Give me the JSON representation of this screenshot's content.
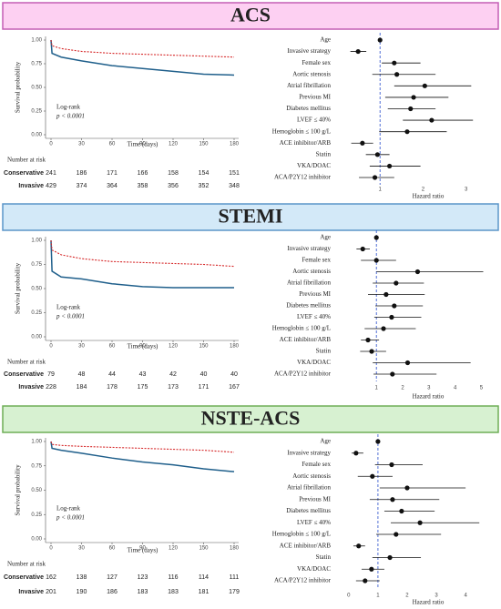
{
  "chart_data": [
    {
      "type": "km",
      "title": "ACS",
      "xlabel": "Time (days)",
      "ylabel": "Survival probability",
      "annotation": [
        "Log-rank",
        "p < 0.0001"
      ],
      "risk_table_title": "Number at risk",
      "x": [
        0,
        1,
        10,
        30,
        60,
        90,
        120,
        150,
        180
      ],
      "xlim": [
        0,
        180
      ],
      "xticks": [
        0,
        30,
        60,
        90,
        120,
        150,
        180
      ],
      "ylim": [
        0,
        1
      ],
      "yticks": [
        {
          "value": 0,
          "label": "0.00"
        },
        {
          "value": 0.25,
          "label": "0.25"
        },
        {
          "value": 0.5,
          "label": "0.50"
        },
        {
          "value": 0.75,
          "label": "0.75"
        },
        {
          "value": 1,
          "label": "1.00"
        }
      ],
      "series": [
        {
          "name": "Conservative",
          "color": "#1f5f8b",
          "dashed": false,
          "values": [
            1,
            0.86,
            0.82,
            0.78,
            0.73,
            0.7,
            0.67,
            0.64,
            0.63
          ],
          "at_risk": [
            241,
            186,
            171,
            166,
            158,
            154,
            151
          ]
        },
        {
          "name": "Invasive",
          "color": "#d62728",
          "dashed": true,
          "values": [
            1,
            0.94,
            0.91,
            0.88,
            0.86,
            0.85,
            0.84,
            0.83,
            0.82
          ],
          "at_risk": [
            429,
            374,
            364,
            358,
            356,
            352,
            348
          ]
        }
      ]
    },
    {
      "type": "forest",
      "xlabel": "Hazard ratio",
      "xlim": [
        0,
        3.6
      ],
      "xticks": [
        1,
        2,
        3
      ],
      "reference_line": 1,
      "color": "#111",
      "categories": [
        "Age",
        "Invasive strategy",
        "Female sex",
        "Aortic stenosis",
        "Atrial fibrillation",
        "Previous MI",
        "Diabetes mellitus",
        "LVEF ≤ 40%",
        "Hemoglobin ≤ 100 g/L",
        "ACE inhibitor/ARB",
        "Statin",
        "VKA/DOAC",
        "ACA/P2Y12 inhibitor"
      ],
      "values": [
        1.0,
        0.49,
        1.33,
        1.39,
        2.04,
        1.78,
        1.71,
        2.2,
        1.63,
        0.59,
        0.94,
        1.22,
        0.88
      ],
      "ci_low": [
        0.99,
        0.31,
        1.04,
        0.82,
        1.33,
        1.12,
        1.18,
        1.53,
        0.98,
        0.33,
        0.67,
        0.76,
        0.51
      ],
      "ci_high": [
        1.01,
        0.68,
        1.94,
        2.29,
        3.12,
        2.59,
        2.29,
        3.16,
        2.55,
        0.84,
        1.22,
        1.94,
        1.33
      ]
    },
    {
      "type": "km",
      "title": "STEMI",
      "xlabel": "Time (days)",
      "ylabel": "Survival probability",
      "annotation": [
        "Log-rank",
        "p < 0.0001"
      ],
      "risk_table_title": "Number at risk",
      "x": [
        0,
        1,
        10,
        30,
        60,
        90,
        120,
        150,
        180
      ],
      "xlim": [
        0,
        180
      ],
      "xticks": [
        0,
        30,
        60,
        90,
        120,
        150,
        180
      ],
      "ylim": [
        0,
        1
      ],
      "yticks": [
        {
          "value": 0,
          "label": "0.00"
        },
        {
          "value": 0.25,
          "label": "0.25"
        },
        {
          "value": 0.5,
          "label": "0.50"
        },
        {
          "value": 0.75,
          "label": "0.75"
        },
        {
          "value": 1,
          "label": "1.00"
        }
      ],
      "series": [
        {
          "name": "Conservative",
          "color": "#1f5f8b",
          "dashed": false,
          "values": [
            1,
            0.68,
            0.62,
            0.6,
            0.55,
            0.52,
            0.51,
            0.51,
            0.51
          ],
          "at_risk": [
            79,
            48,
            44,
            43,
            42,
            40,
            40
          ]
        },
        {
          "name": "Invasive",
          "color": "#d62728",
          "dashed": true,
          "values": [
            1,
            0.9,
            0.85,
            0.81,
            0.78,
            0.77,
            0.76,
            0.75,
            0.73
          ],
          "at_risk": [
            228,
            184,
            178,
            175,
            173,
            171,
            167
          ]
        }
      ]
    },
    {
      "type": "forest",
      "xlabel": "Hazard ratio",
      "xlim": [
        -0.5,
        5.4
      ],
      "xticks": [
        1,
        2,
        3,
        4,
        5
      ],
      "reference_line": 1,
      "color": "#111",
      "categories": [
        "Age",
        "Invasive strategy",
        "Female sex",
        "Aortic stenosis",
        "Atrial fibrillation",
        "Previous MI",
        "Diabetes mellitus",
        "LVEF ≤ 40%",
        "Hemoglobin ≤ 100 g/L",
        "ACE inhibitor/ARB",
        "Statin",
        "VKA/DOAC",
        "ACA/P2Y12 inhibitor"
      ],
      "values": [
        1.0,
        0.48,
        1.0,
        2.57,
        1.75,
        1.37,
        1.68,
        1.58,
        1.27,
        0.68,
        0.82,
        2.19,
        1.61
      ],
      "ci_low": [
        0.99,
        0.24,
        0.41,
        1.0,
        0.86,
        0.68,
        0.96,
        0.92,
        0.55,
        0.41,
        0.38,
        0.86,
        0.89
      ],
      "ci_high": [
        1.01,
        0.75,
        1.75,
        5.07,
        2.81,
        2.84,
        2.77,
        2.71,
        2.5,
        1.1,
        1.37,
        4.59,
        3.29
      ]
    },
    {
      "type": "km",
      "title": "NSTE-ACS",
      "xlabel": "Time (days)",
      "ylabel": "Survival probability",
      "annotation": [
        "Log-rank",
        "p < 0.0001"
      ],
      "risk_table_title": "Number at risk",
      "x": [
        0,
        1,
        10,
        30,
        60,
        90,
        120,
        150,
        180
      ],
      "xlim": [
        0,
        180
      ],
      "xticks": [
        0,
        30,
        60,
        90,
        120,
        150,
        180
      ],
      "ylim": [
        0,
        1
      ],
      "yticks": [
        {
          "value": 0,
          "label": "0.00"
        },
        {
          "value": 0.25,
          "label": "0.25"
        },
        {
          "value": 0.5,
          "label": "0.50"
        },
        {
          "value": 0.75,
          "label": "0.75"
        },
        {
          "value": 1,
          "label": "1.00"
        }
      ],
      "series": [
        {
          "name": "Conservative",
          "color": "#1f5f8b",
          "dashed": false,
          "values": [
            1,
            0.93,
            0.91,
            0.88,
            0.83,
            0.79,
            0.76,
            0.72,
            0.69
          ],
          "at_risk": [
            162,
            138,
            127,
            123,
            116,
            114,
            111
          ]
        },
        {
          "name": "Invasive",
          "color": "#d62728",
          "dashed": true,
          "values": [
            1,
            0.97,
            0.96,
            0.95,
            0.94,
            0.93,
            0.92,
            0.91,
            0.89
          ],
          "at_risk": [
            201,
            190,
            186,
            183,
            183,
            181,
            179
          ]
        }
      ]
    },
    {
      "type": "forest",
      "xlabel": "Hazard ratio",
      "xlim": [
        -0.4,
        4.9
      ],
      "xticks": [
        0,
        1,
        2,
        3,
        4
      ],
      "reference_line": 1,
      "color": "#111",
      "categories": [
        "Age",
        "Invasive strategy",
        "Female sex",
        "Aortic stenosis",
        "Atrial fibrillation",
        "Previous MI",
        "Diabetes mellitus",
        "LVEF ≤ 40%",
        "Hemoglobin ≤ 100 g/L",
        "ACE inhibitor/ARB",
        "Statin",
        "VKA/DOAC",
        "ACA/P2Y12 inhibitor"
      ],
      "values": [
        1.0,
        0.25,
        1.47,
        0.81,
        2.0,
        1.5,
        1.81,
        2.44,
        1.62,
        0.34,
        1.41,
        0.78,
        0.56
      ],
      "ci_low": [
        0.99,
        0.1,
        0.9,
        0.31,
        1.06,
        0.72,
        1.22,
        1.44,
        0.94,
        0.16,
        0.81,
        0.44,
        0.25
      ],
      "ci_high": [
        1.01,
        0.5,
        2.53,
        1.5,
        4.0,
        3.1,
        2.94,
        4.47,
        3.16,
        0.56,
        2.47,
        1.22,
        1.06
      ]
    }
  ]
}
